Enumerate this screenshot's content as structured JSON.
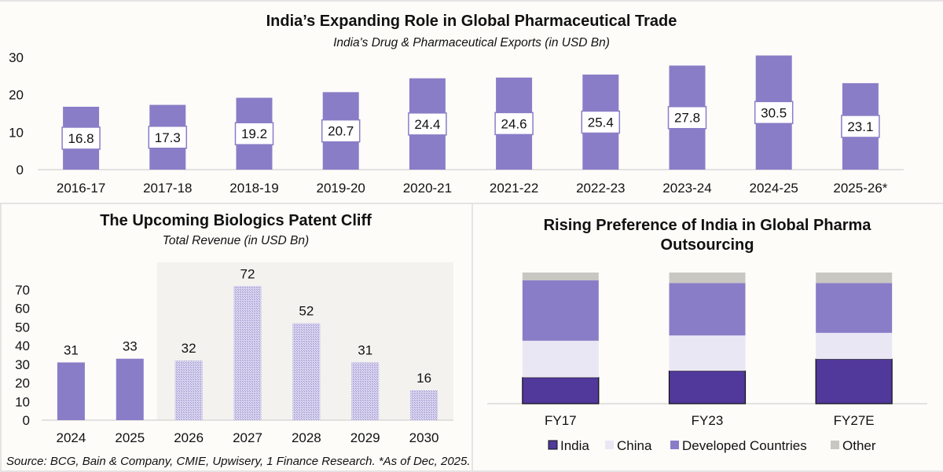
{
  "colors": {
    "bar_purple": "#8a7dc7",
    "bar_hatch_bg": "#d8d4ee",
    "bar_hatch_fg": "#9d93d2",
    "india": "#51389b",
    "china": "#eae7f5",
    "developed": "#8a7dc7",
    "other": "#c8c7c2",
    "shade": "#f3f2ef",
    "axis": "#d9d9d9",
    "label_border": "#8a7dc7"
  },
  "footer": {
    "source": "Source: BCG, Bain & Company, CMIE, Upwisery, 1 Finance Research. *As of Dec, 2025."
  },
  "chart_data": [
    {
      "id": "exports",
      "type": "bar",
      "title": "India’s Expanding Role in Global Pharmaceutical Trade",
      "subtitle": "India's Drug & Pharmaceutical Exports (in USD Bn)",
      "xlabel": "",
      "ylabel": "",
      "categories": [
        "2016-17",
        "2017-18",
        "2018-19",
        "2019-20",
        "2020-21",
        "2021-22",
        "2022-23",
        "2023-24",
        "2024-25",
        "2025-26*"
      ],
      "values": [
        16.8,
        17.3,
        19.2,
        20.7,
        24.4,
        24.6,
        25.4,
        27.8,
        30.5,
        23.1
      ],
      "data_labels": [
        "16.8",
        "17.3",
        "19.2",
        "20.7",
        "24.4",
        "24.6",
        "25.4",
        "27.8",
        "30.5",
        "23.1"
      ],
      "ylim": [
        0,
        30
      ],
      "yticks": [
        0,
        10,
        20,
        30
      ],
      "ytick_labels": [
        "0",
        "10",
        "20",
        "30"
      ],
      "grid": false,
      "legend": "none"
    },
    {
      "id": "patent-cliff",
      "type": "bar",
      "title": "The Upcoming Biologics Patent Cliff",
      "subtitle": "Total Revenue (in USD Bn)",
      "xlabel": "",
      "ylabel": "",
      "categories": [
        "2024",
        "2025",
        "2026",
        "2027",
        "2028",
        "2029",
        "2030"
      ],
      "values": [
        31,
        33,
        32,
        72,
        52,
        31,
        16
      ],
      "data_labels": [
        "31",
        "33",
        "32",
        "72",
        "52",
        "31",
        "16"
      ],
      "projected": [
        false,
        false,
        true,
        true,
        true,
        true,
        true
      ],
      "shaded_region": [
        "2026",
        "2030"
      ],
      "ylim": [
        0,
        70
      ],
      "yticks": [
        0,
        10,
        20,
        30,
        40,
        50,
        60,
        70
      ],
      "ytick_labels": [
        "0",
        "10",
        "20",
        "30",
        "40",
        "50",
        "60",
        "70"
      ],
      "grid": false,
      "legend": "none"
    },
    {
      "id": "outsourcing",
      "type": "bar",
      "stacked": true,
      "title": "Rising Preference of India in Global Pharma Outsourcing",
      "title_lines": [
        "Rising Preference of India in Global Pharma",
        "Outsourcing"
      ],
      "xlabel": "",
      "ylabel": "",
      "categories": [
        "FY17",
        "FY23",
        "FY27E"
      ],
      "series": [
        {
          "name": "India",
          "values": [
            20,
            25,
            34
          ]
        },
        {
          "name": "China",
          "values": [
            28,
            27,
            20
          ]
        },
        {
          "name": "Developed Countries",
          "values": [
            46,
            40,
            38
          ]
        },
        {
          "name": "Other",
          "values": [
            6,
            8,
            8
          ]
        }
      ],
      "ylim": [
        0,
        100
      ],
      "grid": false,
      "legend": "bottom"
    }
  ]
}
